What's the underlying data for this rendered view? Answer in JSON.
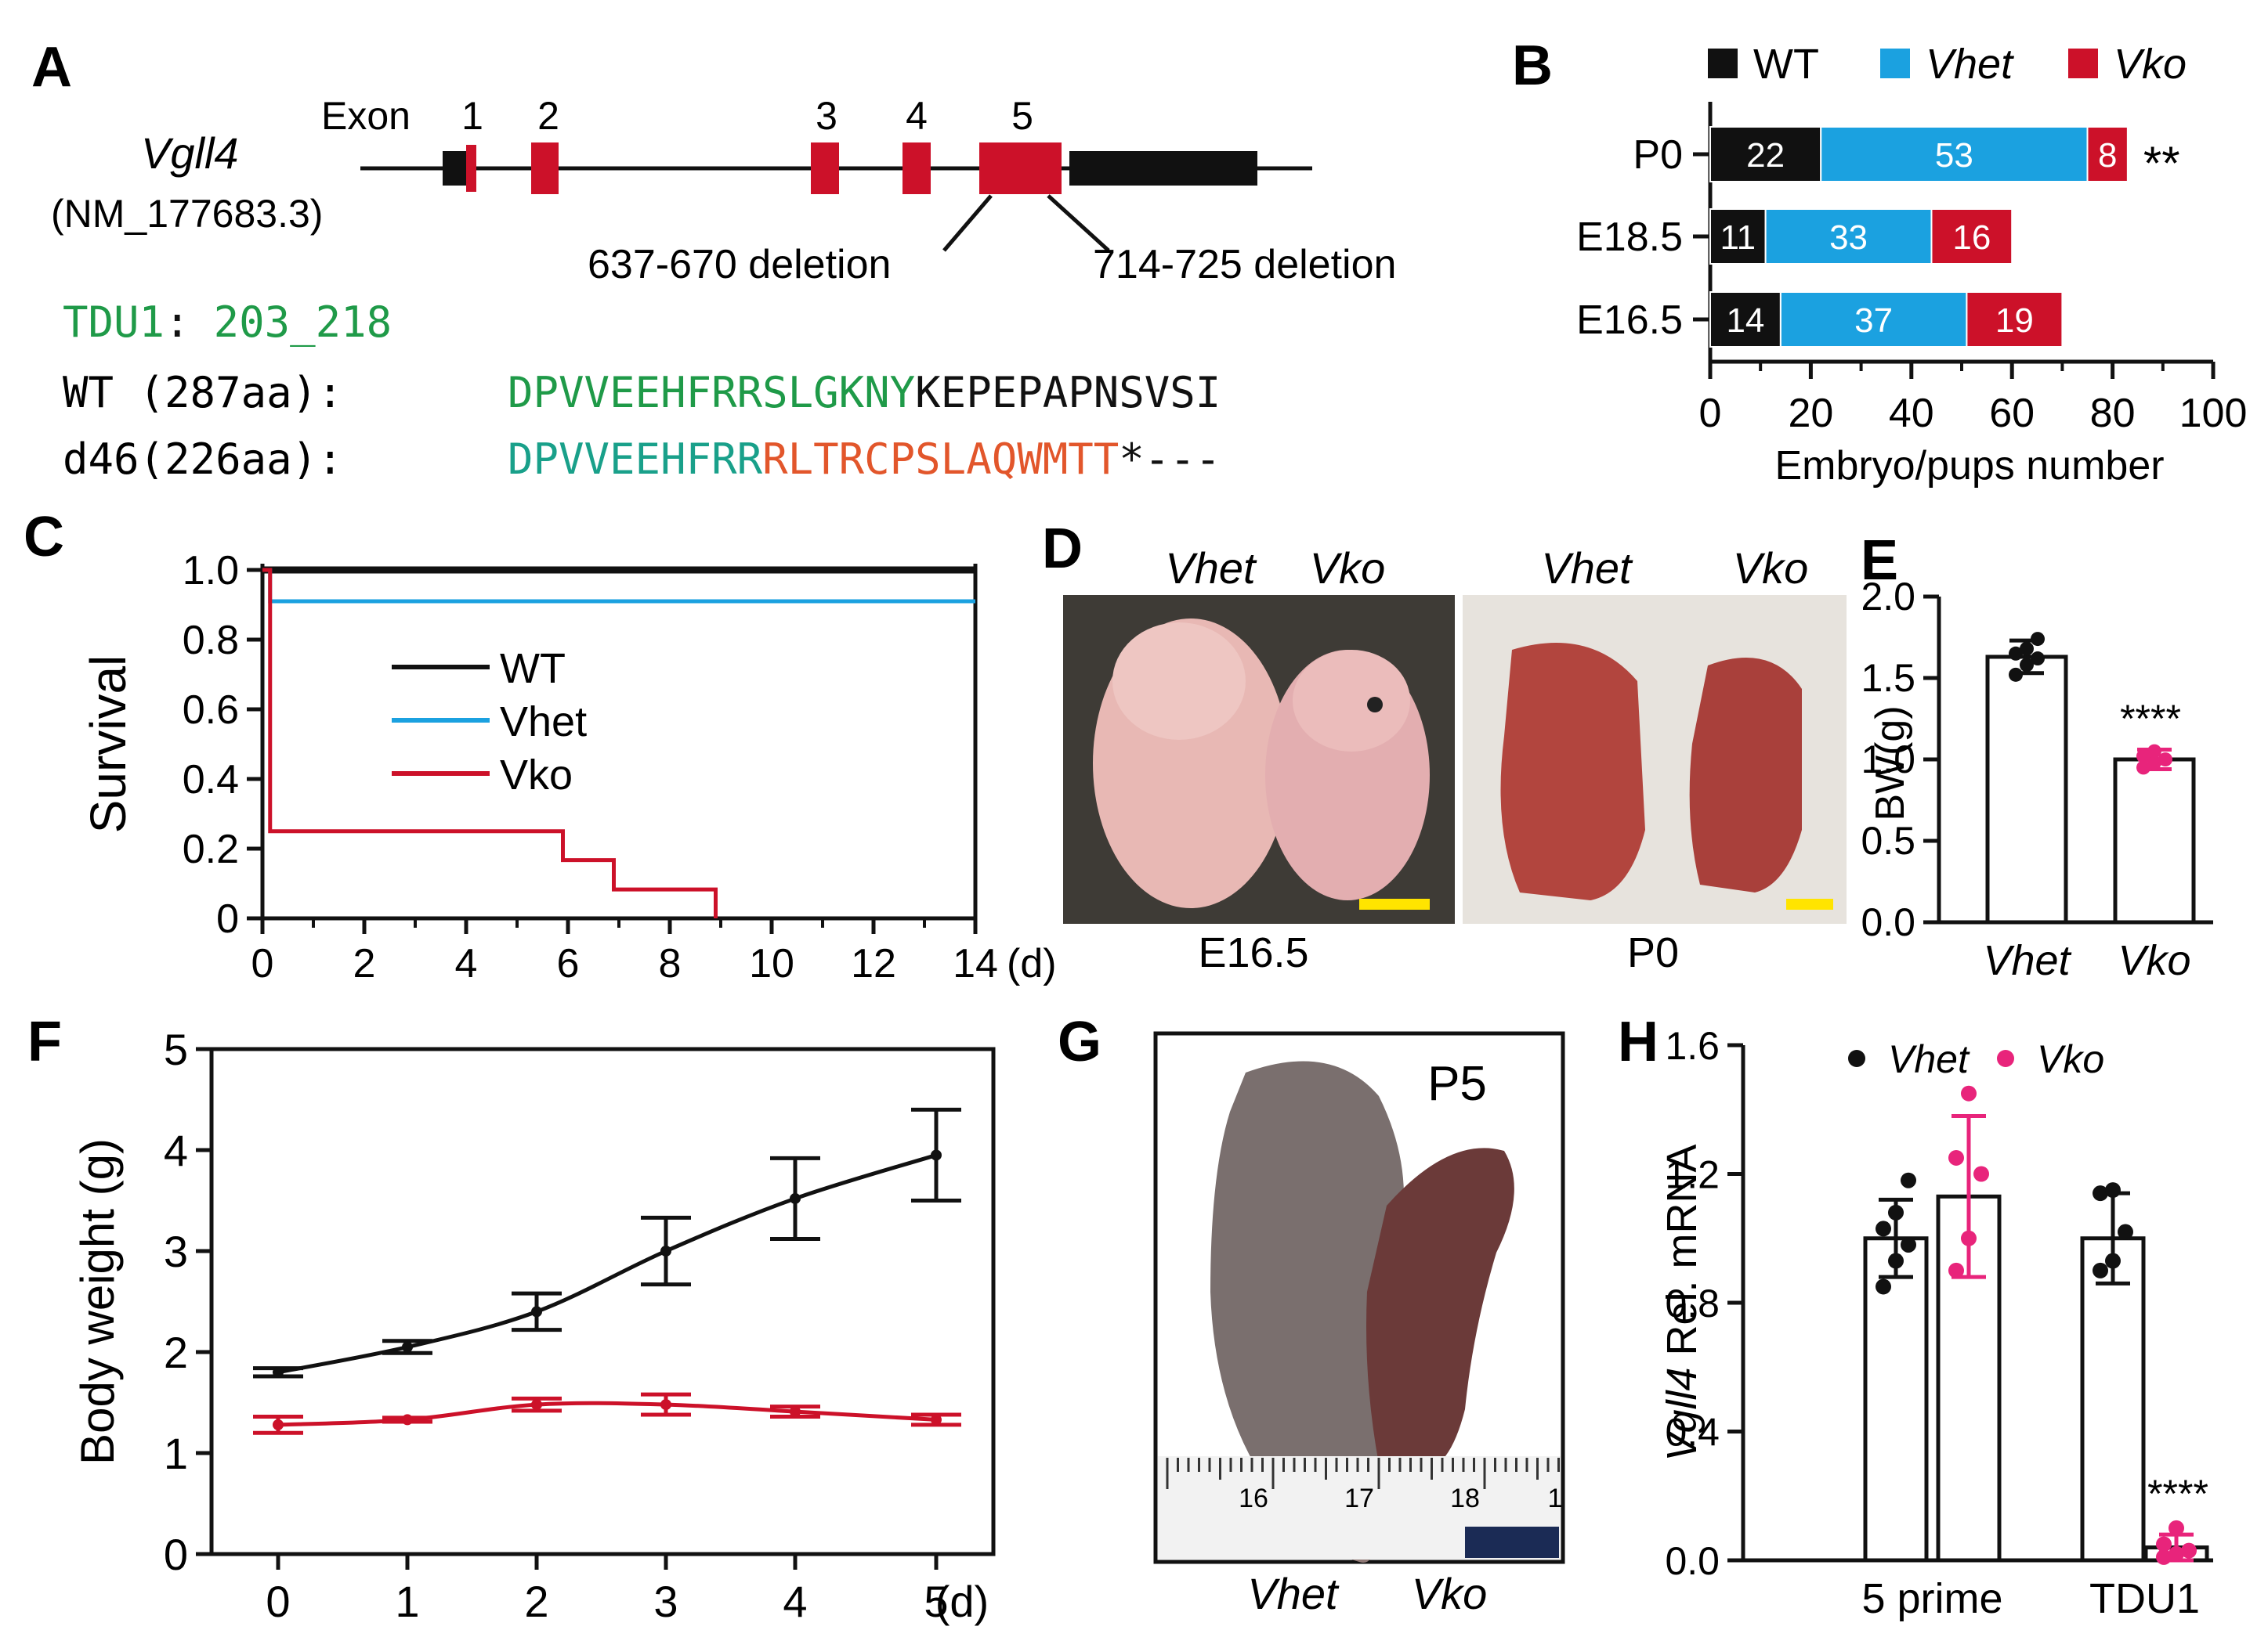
{
  "colors": {
    "black": "#111111",
    "blue": "#1ba1e0",
    "red": "#cc1129",
    "green": "#1f9a48",
    "teal": "#19a08a",
    "orange": "#e2562b",
    "magenta": "#e8247b",
    "yellow": "#ffe400",
    "photo_bg_dark": "#3e3b36",
    "photo_bg_light": "#e7e3dd",
    "pup_pink": "#e8b8b4",
    "pup_red": "#b2453e",
    "pup_grey": "#7a6f6e",
    "pup_dark": "#6b3a39",
    "ruler_bg": "#f2f2f2",
    "scale_navy": "#1b2b55"
  },
  "panels": {
    "A": "A",
    "B": "B",
    "C": "C",
    "D": "D",
    "E": "E",
    "F": "F",
    "G": "G",
    "H": "H"
  },
  "panelA": {
    "gene": "Vgll4",
    "accession": "(NM_177683.3)",
    "exon_label": "Exon",
    "exon_numbers": [
      "1",
      "2",
      "3",
      "4",
      "5"
    ],
    "deletion_left": "637-670 deletion",
    "deletion_right": "714-725 deletion",
    "tdu_label": "TDU1",
    "tdu_colon": ":",
    "tdu_range": "203_218",
    "wt_label": "WT (287aa):",
    "wt_seq_conserved": "DPVVEEHFRRSLGKNY",
    "wt_seq_rest": "KEPEPAPNSVSI",
    "d46_label": "d46(226aa):",
    "d46_seq_conserved": "DPVVEEHFRR",
    "d46_seq_frameshift": "RLTRCPSLAQWMTT",
    "d46_seq_end": "*---"
  },
  "chart_data": [
    {
      "panel": "B",
      "type": "bar",
      "orientation": "horizontal",
      "stacked": true,
      "legend": [
        "WT",
        "Vhet",
        "Vko"
      ],
      "legend_position": "top",
      "categories": [
        "P0",
        "E18.5",
        "E16.5"
      ],
      "series": [
        {
          "name": "WT",
          "values": [
            22,
            11,
            14
          ]
        },
        {
          "name": "Vhet",
          "values": [
            53,
            33,
            37
          ]
        },
        {
          "name": "Vko",
          "values": [
            8,
            16,
            19
          ]
        }
      ],
      "annotations": [
        "**",
        "",
        ""
      ],
      "xlabel": "Embryo/pups number",
      "xticks": [
        "0",
        "20",
        "40",
        "60",
        "80",
        "100"
      ],
      "xlim": [
        0,
        100
      ]
    },
    {
      "panel": "C",
      "type": "line",
      "subtype": "kaplan-meier",
      "ylabel": "Survival",
      "yticks": [
        "0",
        "0.2",
        "0.4",
        "0.6",
        "0.8",
        "1.0"
      ],
      "xticks": [
        "0",
        "2",
        "4",
        "6",
        "8",
        "10",
        "12",
        "14"
      ],
      "xunit": "(d)",
      "xlim": [
        0,
        14
      ],
      "ylim": [
        0,
        1
      ],
      "legend_position": "center-left",
      "series": [
        {
          "name": "WT",
          "x": [
            0,
            14
          ],
          "y": [
            1.0,
            1.0
          ]
        },
        {
          "name": "Vhet",
          "x": [
            0,
            0.15,
            14
          ],
          "y": [
            1.0,
            0.91,
            0.91
          ]
        },
        {
          "name": "Vko",
          "x": [
            0,
            0.15,
            5.9,
            6.9,
            8.9
          ],
          "y": [
            1.0,
            0.25,
            0.167,
            0.083,
            0.0
          ]
        }
      ]
    },
    {
      "panel": "E",
      "type": "bar",
      "categories": [
        "Vhet",
        "Vko"
      ],
      "values": [
        1.63,
        1.0
      ],
      "errors": [
        0.1,
        0.06
      ],
      "points": [
        [
          1.52,
          1.58,
          1.62,
          1.65,
          1.68,
          1.74
        ],
        [
          0.95,
          0.98,
          1.0,
          1.02,
          1.05
        ]
      ],
      "point_colors": [
        "black",
        "magenta"
      ],
      "annotation": "****",
      "ylabel": "BW(g)",
      "yticks": [
        "0.0",
        "0.5",
        "1.0",
        "1.5",
        "2.0"
      ],
      "ylim": [
        0,
        2
      ]
    },
    {
      "panel": "F",
      "type": "line",
      "ylabel": "Body weight (g)",
      "yticks": [
        "0",
        "1",
        "2",
        "3",
        "4",
        "5"
      ],
      "xticks": [
        "0",
        "1",
        "2",
        "3",
        "4",
        "5"
      ],
      "xunit": "(d)",
      "xlim": [
        0,
        5
      ],
      "ylim": [
        0,
        5
      ],
      "series": [
        {
          "name": "Vhet",
          "color": "black",
          "x": [
            0,
            1,
            2,
            3,
            4,
            5
          ],
          "y": [
            1.8,
            2.05,
            2.4,
            3.0,
            3.52,
            3.95
          ],
          "err": [
            0.04,
            0.06,
            0.18,
            0.33,
            0.4,
            0.45
          ]
        },
        {
          "name": "Vko",
          "color": "red",
          "x": [
            0,
            1,
            2,
            3,
            4,
            5
          ],
          "y": [
            1.28,
            1.33,
            1.48,
            1.48,
            1.41,
            1.33
          ],
          "err": [
            0.08,
            0.02,
            0.06,
            0.1,
            0.05,
            0.05
          ]
        }
      ]
    },
    {
      "panel": "H",
      "type": "bar",
      "categories": [
        "5 prime",
        "TDU1"
      ],
      "series": [
        {
          "name": "Vhet",
          "values": [
            1.0,
            1.0
          ],
          "errors": [
            0.12,
            0.14
          ],
          "points": [
            [
              0.85,
              0.93,
              0.98,
              1.03,
              1.08,
              1.18
            ],
            [
              0.9,
              0.93,
              1.02,
              1.14,
              1.15
            ]
          ]
        },
        {
          "name": "Vko",
          "values": [
            1.13,
            0.04
          ],
          "errors": [
            0.25,
            0.04
          ],
          "points": [
            [
              0.9,
              1.0,
              1.2,
              1.25,
              1.45
            ],
            [
              0.01,
              0.02,
              0.03,
              0.05,
              0.1
            ]
          ]
        }
      ],
      "legend": [
        "Vhet",
        "Vko"
      ],
      "legend_position": "top",
      "annotation": "****",
      "ylabel_italic": "Vgll4",
      "ylabel_rest": " Rel. mRNA",
      "yticks": [
        "0.0",
        "0.4",
        "0.8",
        "1.2",
        "1.6"
      ],
      "ylim": [
        0,
        1.6
      ]
    }
  ],
  "panelD": {
    "left_labels": [
      "Vhet",
      "Vko"
    ],
    "right_labels": [
      "Vhet",
      "Vko"
    ],
    "left_caption": "E16.5",
    "right_caption": "P0"
  },
  "panelG": {
    "stage": "P5",
    "ruler_numbers": [
      "16",
      "17",
      "18",
      "1"
    ],
    "labels": [
      "Vhet",
      "Vko"
    ]
  }
}
